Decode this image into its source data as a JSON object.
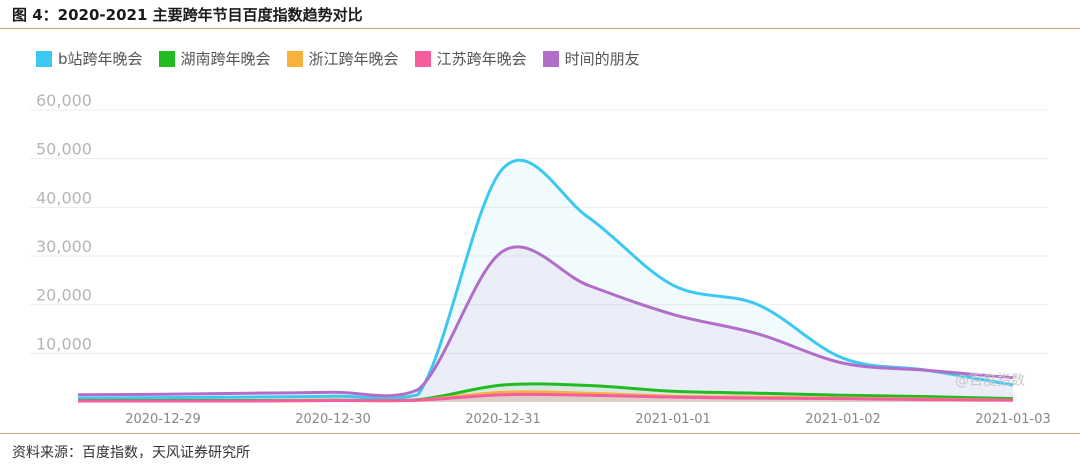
{
  "figure": {
    "title": "图 4：2020-2021 主要跨年节目百度指数趋势对比",
    "source": "资料来源：百度指数，天风证券研究所",
    "watermark": "@百度指数"
  },
  "chart_data": {
    "type": "area",
    "title": "",
    "xlabel": "",
    "ylabel": "",
    "ylim": [
      0,
      60000
    ],
    "yticks": [
      "10,000",
      "20,000",
      "30,000",
      "40,000",
      "50,000",
      "60,000"
    ],
    "ytick_values": [
      10000,
      20000,
      30000,
      40000,
      50000,
      60000
    ],
    "categories": [
      "2020-12-29",
      "2020-12-30",
      "2020-12-31",
      "2021-01-01",
      "2021-01-02",
      "2021-01-03"
    ],
    "x": [
      -0.5,
      0,
      0.5,
      1,
      1.5,
      2,
      2.5,
      3,
      3.5,
      4,
      4.5,
      5
    ],
    "grid": true,
    "legend_position": "top-left",
    "series": [
      {
        "name": "b站跨年晚会",
        "color": "#3cc8f0",
        "values": [
          800,
          900,
          1000,
          1200,
          1500,
          48000,
          38000,
          24000,
          20000,
          9000,
          6500,
          3500
        ]
      },
      {
        "name": "湖南跨年晚会",
        "color": "#22bb22",
        "values": [
          300,
          300,
          300,
          400,
          500,
          3500,
          3400,
          2200,
          1800,
          1400,
          1100,
          700
        ]
      },
      {
        "name": "浙江跨年晚会",
        "color": "#f7b23b",
        "values": [
          200,
          200,
          200,
          300,
          400,
          2000,
          1800,
          1200,
          1000,
          800,
          600,
          400
        ]
      },
      {
        "name": "江苏跨年晚会",
        "color": "#f55d9e",
        "values": [
          200,
          200,
          200,
          300,
          400,
          1500,
          1400,
          1000,
          800,
          700,
          500,
          400
        ]
      },
      {
        "name": "时间的朋友",
        "color": "#b06ec8",
        "values": [
          1500,
          1600,
          1800,
          2000,
          2500,
          31000,
          24000,
          18000,
          14000,
          8000,
          6500,
          5000
        ]
      }
    ]
  }
}
